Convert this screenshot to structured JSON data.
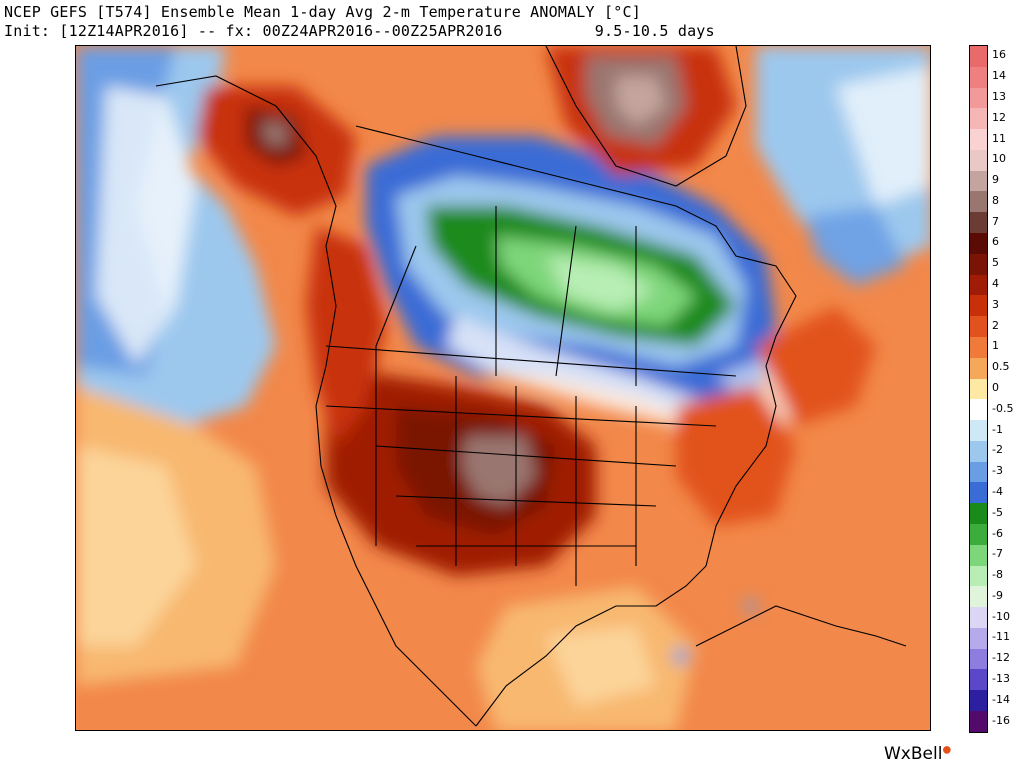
{
  "header": {
    "line1": "NCEP GEFS [T574] Ensemble Mean 1-day Avg 2-m Temperature ANOMALY [°C]",
    "line2": "Init: [12Z14APR2016] -- fx: 00Z24APR2016--00Z25APR2016          9.5-10.5 days"
  },
  "legend": {
    "labels": [
      "16",
      "14",
      "13",
      "12",
      "11",
      "10",
      "9",
      "8",
      "7",
      "6",
      "5",
      "4",
      "3",
      "2",
      "1",
      "0.5",
      "0",
      "-0.5",
      "-1",
      "-2",
      "-3",
      "-4",
      "-5",
      "-6",
      "-7",
      "-8",
      "-9",
      "-10",
      "-11",
      "-12",
      "-13",
      "-14",
      "-16"
    ],
    "colors": [
      "#e86a6a",
      "#ee8080",
      "#f29a9a",
      "#f6b6b6",
      "#fad2d2",
      "#eac8c6",
      "#c4a49e",
      "#9a7670",
      "#6a3c34",
      "#5a0c04",
      "#7a1404",
      "#a01c06",
      "#c8300a",
      "#e2521e",
      "#f07a3a",
      "#f6a85a",
      "#fde8a4",
      "#ffffff",
      "#cfe8f6",
      "#9cc8ee",
      "#6a9ee4",
      "#3a6cd6",
      "#1a8a1a",
      "#3cac3c",
      "#7ed67a",
      "#b8eeb4",
      "#e0f4dc",
      "#dcd6f4",
      "#b6aaea",
      "#8e7cde",
      "#5a48c8",
      "#2c20a0",
      "#540a6a"
    ]
  },
  "logo": {
    "brand": "WxBell"
  }
}
